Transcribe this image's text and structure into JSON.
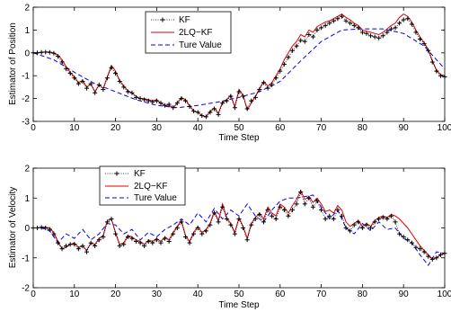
{
  "chart_data": [
    {
      "type": "line",
      "xlabel": "Time Step",
      "ylabel": "Estimator of Position",
      "xlim": [
        0,
        100
      ],
      "ylim": [
        -3,
        2
      ],
      "xticks": [
        0,
        10,
        20,
        30,
        40,
        50,
        60,
        70,
        80,
        90,
        100
      ],
      "yticks": [
        -3,
        -2,
        -1,
        0,
        1,
        2
      ],
      "grid": false,
      "legend_position": "top-center",
      "series": [
        {
          "name": "KF",
          "style": "dotted-plus",
          "color": "#000000",
          "x": [
            0,
            1,
            2,
            3,
            4,
            5,
            6,
            7,
            8,
            9,
            10,
            11,
            12,
            13,
            14,
            15,
            16,
            17,
            18,
            19,
            20,
            21,
            22,
            23,
            24,
            25,
            26,
            27,
            28,
            29,
            30,
            31,
            32,
            33,
            34,
            35,
            36,
            37,
            38,
            39,
            40,
            41,
            42,
            43,
            44,
            45,
            46,
            47,
            48,
            49,
            50,
            51,
            52,
            53,
            54,
            55,
            56,
            57,
            58,
            59,
            60,
            61,
            62,
            63,
            64,
            65,
            66,
            67,
            68,
            69,
            70,
            71,
            72,
            73,
            74,
            75,
            76,
            77,
            78,
            79,
            80,
            81,
            82,
            83,
            84,
            85,
            86,
            87,
            88,
            89,
            90,
            91,
            92,
            93,
            94,
            95,
            96,
            97,
            98,
            99,
            100
          ],
          "y": [
            0,
            0,
            0.02,
            0.03,
            0.02,
            -0.02,
            -0.15,
            -0.4,
            -0.7,
            -0.9,
            -1.1,
            -1.35,
            -1.25,
            -1.55,
            -1.35,
            -1.75,
            -1.4,
            -1.6,
            -1.1,
            -0.65,
            -0.9,
            -1.25,
            -1.5,
            -1.7,
            -1.75,
            -1.95,
            -2.0,
            -2.05,
            -2.1,
            -2.15,
            -2.1,
            -2.2,
            -2.3,
            -2.25,
            -2.4,
            -2.2,
            -2.0,
            -2.1,
            -2.35,
            -2.55,
            -2.6,
            -2.75,
            -2.8,
            -2.6,
            -2.45,
            -2.7,
            -2.2,
            -2.1,
            -1.9,
            -2.4,
            -1.7,
            -1.9,
            -2.45,
            -2.1,
            -1.95,
            -1.6,
            -1.3,
            -1.55,
            -1.4,
            -1.1,
            -0.8,
            -0.5,
            -0.2,
            0.1,
            0.3,
            0.55,
            0.5,
            0.8,
            0.7,
            1.0,
            1.1,
            1.2,
            1.3,
            1.4,
            1.5,
            1.6,
            1.4,
            1.3,
            1.2,
            1.1,
            0.9,
            0.85,
            0.75,
            0.7,
            0.65,
            0.75,
            0.9,
            1.05,
            1.1,
            1.3,
            1.45,
            1.5,
            1.25,
            0.9,
            0.6,
            0.4,
            0.1,
            -0.4,
            -0.8,
            -1.0,
            -1.05
          ]
        },
        {
          "name": "2LQ−KF",
          "style": "solid",
          "color": "#e00000",
          "x": [
            0,
            1,
            2,
            3,
            4,
            5,
            6,
            7,
            8,
            9,
            10,
            11,
            12,
            13,
            14,
            15,
            16,
            17,
            18,
            19,
            20,
            21,
            22,
            23,
            24,
            25,
            26,
            27,
            28,
            29,
            30,
            31,
            32,
            33,
            34,
            35,
            36,
            37,
            38,
            39,
            40,
            41,
            42,
            43,
            44,
            45,
            46,
            47,
            48,
            49,
            50,
            51,
            52,
            53,
            54,
            55,
            56,
            57,
            58,
            59,
            60,
            61,
            62,
            63,
            64,
            65,
            66,
            67,
            68,
            69,
            70,
            71,
            72,
            73,
            74,
            75,
            76,
            77,
            78,
            79,
            80,
            81,
            82,
            83,
            84,
            85,
            86,
            87,
            88,
            89,
            90,
            91,
            92,
            93,
            94,
            95,
            96,
            97,
            98,
            99,
            100
          ],
          "y": [
            0,
            0,
            0.02,
            0.04,
            0.04,
            0.0,
            -0.1,
            -0.3,
            -0.6,
            -0.85,
            -1.05,
            -1.3,
            -1.2,
            -1.5,
            -1.35,
            -1.7,
            -1.4,
            -1.55,
            -1.05,
            -0.55,
            -0.8,
            -1.2,
            -1.45,
            -1.65,
            -1.75,
            -1.9,
            -2.0,
            -2.0,
            -2.05,
            -2.1,
            -2.05,
            -2.2,
            -2.3,
            -2.3,
            -2.4,
            -2.2,
            -1.95,
            -2.05,
            -2.3,
            -2.55,
            -2.6,
            -2.75,
            -2.8,
            -2.55,
            -2.4,
            -2.65,
            -2.15,
            -2.05,
            -1.85,
            -2.35,
            -1.6,
            -1.85,
            -2.5,
            -2.2,
            -1.9,
            -1.55,
            -1.25,
            -1.45,
            -1.3,
            -1.0,
            -0.7,
            -0.3,
            0.0,
            0.3,
            0.5,
            0.8,
            0.7,
            1.0,
            0.9,
            1.15,
            1.25,
            1.35,
            1.4,
            1.5,
            1.6,
            1.7,
            1.55,
            1.45,
            1.3,
            1.2,
            1.0,
            0.95,
            0.9,
            0.85,
            0.8,
            0.9,
            1.05,
            1.2,
            1.3,
            1.55,
            1.7,
            1.6,
            1.35,
            1.0,
            0.7,
            0.45,
            0.15,
            -0.35,
            -0.75,
            -0.95,
            -1.0
          ]
        },
        {
          "name": "Ture Value",
          "style": "dashed",
          "color": "#0000ee",
          "x": [
            0,
            5,
            10,
            15,
            20,
            25,
            30,
            35,
            40,
            45,
            50,
            55,
            60,
            65,
            70,
            75,
            80,
            85,
            90,
            95,
            100
          ],
          "y": [
            0.0,
            -0.3,
            -0.85,
            -1.35,
            -1.7,
            -2.05,
            -2.3,
            -2.4,
            -2.3,
            -2.15,
            -1.95,
            -1.7,
            -1.25,
            -0.35,
            0.5,
            1.0,
            1.05,
            1.05,
            0.85,
            0.3,
            -0.7
          ]
        }
      ]
    },
    {
      "type": "line",
      "xlabel": "Time Step",
      "ylabel": "Estimator of Velocity",
      "xlim": [
        0,
        100
      ],
      "ylim": [
        -2,
        2
      ],
      "xticks": [
        0,
        10,
        20,
        30,
        40,
        50,
        60,
        70,
        80,
        90,
        100
      ],
      "yticks": [
        -2,
        -1,
        0,
        1,
        2
      ],
      "grid": false,
      "legend_position": "top-left",
      "series": [
        {
          "name": "KF",
          "style": "dotted-plus",
          "color": "#000000",
          "x": [
            0,
            1,
            2,
            3,
            4,
            5,
            6,
            7,
            8,
            9,
            10,
            11,
            12,
            13,
            14,
            15,
            16,
            17,
            18,
            19,
            20,
            21,
            22,
            23,
            24,
            25,
            26,
            27,
            28,
            29,
            30,
            31,
            32,
            33,
            34,
            35,
            36,
            37,
            38,
            39,
            40,
            41,
            42,
            43,
            44,
            45,
            46,
            47,
            48,
            49,
            50,
            51,
            52,
            53,
            54,
            55,
            56,
            57,
            58,
            59,
            60,
            61,
            62,
            63,
            64,
            65,
            66,
            67,
            68,
            69,
            70,
            71,
            72,
            73,
            74,
            75,
            76,
            77,
            78,
            79,
            80,
            81,
            82,
            83,
            84,
            85,
            86,
            87,
            88,
            89,
            90,
            91,
            92,
            93,
            94,
            95,
            96,
            97,
            98,
            99,
            100
          ],
          "y": [
            0,
            0,
            0.02,
            0.0,
            -0.05,
            -0.2,
            -0.5,
            -0.7,
            -0.6,
            -0.55,
            -0.55,
            -0.7,
            -0.6,
            -0.8,
            -0.5,
            -0.6,
            -0.4,
            -0.3,
            0.2,
            0.3,
            -0.2,
            -0.6,
            -0.55,
            -0.3,
            -0.35,
            -0.45,
            -0.5,
            -0.6,
            -0.45,
            -0.5,
            -0.4,
            -0.5,
            -0.35,
            -0.45,
            -0.2,
            0.0,
            0.2,
            -0.3,
            -0.5,
            -0.2,
            0.0,
            -0.2,
            -0.1,
            0.1,
            0.5,
            0.2,
            0.7,
            0.3,
            0.1,
            -0.2,
            0.3,
            0.0,
            -0.4,
            0.1,
            0.3,
            0.45,
            0.2,
            0.6,
            0.4,
            0.3,
            0.7,
            0.6,
            0.4,
            0.6,
            0.8,
            1.2,
            0.8,
            1.0,
            0.7,
            0.9,
            0.6,
            0.3,
            0.4,
            0.3,
            0.6,
            0.4,
            0.0,
            -0.1,
            0.1,
            0.2,
            0.0,
            0.1,
            0.0,
            0.2,
            0.3,
            0.35,
            0.3,
            0.4,
            0.2,
            -0.2,
            -0.3,
            -0.4,
            -0.5,
            -0.65,
            -0.7,
            -0.8,
            -0.95,
            -1.05,
            -1.0,
            -0.9,
            -0.85
          ]
        },
        {
          "name": "2LQ−KF",
          "style": "solid",
          "color": "#e00000",
          "x": [
            0,
            1,
            2,
            3,
            4,
            5,
            6,
            7,
            8,
            9,
            10,
            11,
            12,
            13,
            14,
            15,
            16,
            17,
            18,
            19,
            20,
            21,
            22,
            23,
            24,
            25,
            26,
            27,
            28,
            29,
            30,
            31,
            32,
            33,
            34,
            35,
            36,
            37,
            38,
            39,
            40,
            41,
            42,
            43,
            44,
            45,
            46,
            47,
            48,
            49,
            50,
            51,
            52,
            53,
            54,
            55,
            56,
            57,
            58,
            59,
            60,
            61,
            62,
            63,
            64,
            65,
            66,
            67,
            68,
            69,
            70,
            71,
            72,
            73,
            74,
            75,
            76,
            77,
            78,
            79,
            80,
            81,
            82,
            83,
            84,
            85,
            86,
            87,
            88,
            89,
            90,
            91,
            92,
            93,
            94,
            95,
            96,
            97,
            98,
            99,
            100
          ],
          "y": [
            0,
            0,
            0.03,
            0.02,
            0.0,
            -0.15,
            -0.45,
            -0.7,
            -0.65,
            -0.55,
            -0.5,
            -0.65,
            -0.6,
            -0.75,
            -0.5,
            -0.55,
            -0.35,
            -0.25,
            0.25,
            0.3,
            -0.15,
            -0.55,
            -0.5,
            -0.25,
            -0.3,
            -0.4,
            -0.45,
            -0.55,
            -0.4,
            -0.45,
            -0.35,
            -0.45,
            -0.3,
            -0.4,
            -0.15,
            0.05,
            0.25,
            -0.25,
            -0.45,
            -0.15,
            0.05,
            -0.15,
            -0.05,
            0.15,
            0.55,
            0.25,
            0.8,
            0.35,
            0.15,
            -0.15,
            0.35,
            0.05,
            -0.35,
            0.15,
            0.35,
            0.5,
            0.3,
            0.7,
            0.5,
            0.4,
            0.8,
            0.7,
            0.5,
            0.75,
            0.95,
            1.25,
            0.95,
            1.05,
            0.85,
            1.0,
            0.8,
            0.55,
            0.6,
            0.5,
            0.75,
            0.6,
            0.2,
            0.05,
            0.15,
            0.25,
            0.05,
            0.15,
            0.05,
            0.25,
            0.35,
            0.4,
            0.35,
            0.45,
            0.4,
            0.3,
            0.15,
            0.0,
            -0.2,
            -0.4,
            -0.6,
            -0.75,
            -0.9,
            -1.05,
            -1.0,
            -0.9,
            -0.85
          ]
        },
        {
          "name": "Ture Value",
          "style": "dashed",
          "color": "#0000ee",
          "x": [
            0,
            2,
            4,
            6,
            8,
            10,
            12,
            14,
            16,
            18,
            20,
            22,
            24,
            26,
            28,
            30,
            32,
            34,
            36,
            38,
            40,
            42,
            44,
            46,
            48,
            50,
            52,
            54,
            56,
            58,
            60,
            62,
            64,
            66,
            68,
            70,
            72,
            74,
            76,
            78,
            80,
            82,
            84,
            86,
            88,
            90,
            92,
            94,
            96,
            98,
            100
          ],
          "y": [
            0.0,
            0.0,
            -0.1,
            -0.5,
            -0.2,
            -0.35,
            -0.05,
            -0.4,
            -0.2,
            0.15,
            0.1,
            -0.2,
            -0.05,
            -0.4,
            -0.15,
            -0.3,
            -0.05,
            0.1,
            0.3,
            0.1,
            0.5,
            0.2,
            0.65,
            0.3,
            0.6,
            0.4,
            0.8,
            0.4,
            0.2,
            0.6,
            0.9,
            1.0,
            1.0,
            1.05,
            1.1,
            0.7,
            0.3,
            0.6,
            0.0,
            -0.2,
            0.15,
            -0.1,
            0.2,
            -0.05,
            0.0,
            -0.35,
            -0.5,
            -0.9,
            -1.25,
            -0.8,
            -0.85
          ]
        }
      ]
    }
  ]
}
